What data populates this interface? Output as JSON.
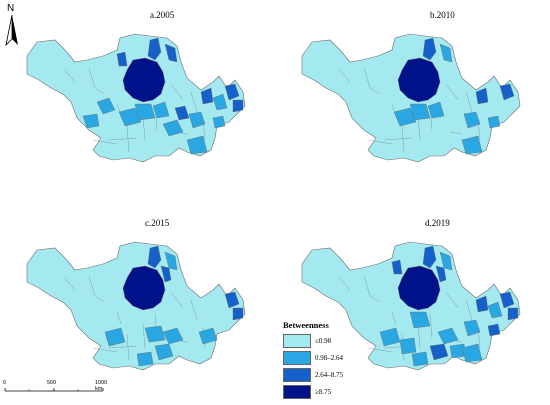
{
  "north_label": "N",
  "colors": {
    "level_1": "#a4e9ef",
    "level_2": "#2aa6e3",
    "level_3": "#1561c9",
    "level_4": "#00128a",
    "outline": "#6b6b6b"
  },
  "panels": [
    {
      "title": "a.2005",
      "districts": {
        "level_2": [
          "w1",
          "w3",
          "c2",
          "c3",
          "c5",
          "c6",
          "e2",
          "e4",
          "e6",
          "s3"
        ],
        "level_3": [
          "n1",
          "n3",
          "n4",
          "c8",
          "e1",
          "e5",
          "e7"
        ],
        "level_4": [
          "core"
        ]
      }
    },
    {
      "title": "b.2010",
      "districts": {
        "level_2": [
          "n3",
          "c2",
          "c3",
          "c5",
          "e2",
          "e6",
          "s3"
        ],
        "level_3": [
          "n1",
          "e1",
          "e5"
        ],
        "level_4": [
          "core"
        ]
      }
    },
    {
      "title": "c.2015",
      "districts": {
        "level_2": [
          "n3",
          "c1",
          "c4",
          "c6",
          "e3",
          "s1",
          "s4"
        ],
        "level_3": [
          "n1",
          "n2",
          "e5",
          "e7"
        ],
        "level_4": [
          "core"
        ]
      }
    },
    {
      "title": "d.2019",
      "districts": {
        "level_2": [
          "n3",
          "c1",
          "c3",
          "c6",
          "c7",
          "e2",
          "e4",
          "s2",
          "s3",
          "s4"
        ],
        "level_3": [
          "n1",
          "n2",
          "n4",
          "e1",
          "e5",
          "e6",
          "e7",
          "s1"
        ],
        "level_4": [
          "core"
        ]
      }
    }
  ],
  "legend": {
    "title": "Betweenness",
    "items": [
      {
        "label": "≤0.98",
        "color": "#a4e9ef"
      },
      {
        "label": "0.98–2.64",
        "color": "#2aa6e3"
      },
      {
        "label": "2.64–8.75",
        "color": "#1561c9"
      },
      {
        "label": "≥8.75",
        "color": "#00128a"
      }
    ]
  },
  "scale": {
    "ticks": [
      "0",
      "500",
      "1000 km"
    ]
  }
}
